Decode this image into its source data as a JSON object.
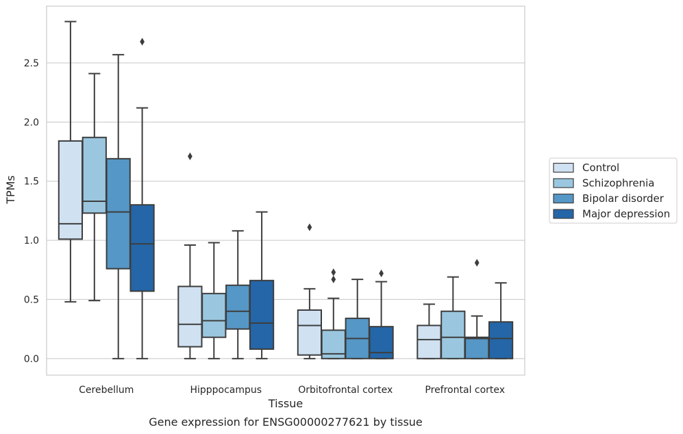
{
  "chart_data": {
    "type": "box",
    "xlabel": "Tissue",
    "ylabel": "TPMs",
    "caption": "Gene expression for ENSG00000277621 by tissue",
    "ylim": [
      -0.14,
      2.98
    ],
    "yticks": [
      "0.0",
      "0.5",
      "1.0",
      "1.5",
      "2.0",
      "2.5"
    ],
    "grid": "horizontal",
    "legend_position": "right",
    "categories": [
      "Cerebellum",
      "Hipppocampus",
      "Orbitofrontal cortex",
      "Prefrontal cortex"
    ],
    "series": [
      {
        "name": "Control",
        "color": "#d0e1f2",
        "boxes": [
          {
            "min": 0.48,
            "q1": 1.01,
            "median": 1.14,
            "q3": 1.84,
            "max": 2.85,
            "outliers": []
          },
          {
            "min": 0.0,
            "q1": 0.1,
            "median": 0.29,
            "q3": 0.61,
            "max": 0.96,
            "outliers": [
              1.71
            ]
          },
          {
            "min": 0.0,
            "q1": 0.03,
            "median": 0.28,
            "q3": 0.41,
            "max": 0.59,
            "outliers": [
              1.11
            ]
          },
          {
            "min": 0.0,
            "q1": 0.0,
            "median": 0.16,
            "q3": 0.28,
            "max": 0.46,
            "outliers": []
          }
        ]
      },
      {
        "name": "Schizophrenia",
        "color": "#9ac7df",
        "boxes": [
          {
            "min": 0.49,
            "q1": 1.23,
            "median": 1.33,
            "q3": 1.87,
            "max": 2.41,
            "outliers": []
          },
          {
            "min": 0.0,
            "q1": 0.18,
            "median": 0.32,
            "q3": 0.55,
            "max": 0.98,
            "outliers": []
          },
          {
            "min": 0.0,
            "q1": 0.0,
            "median": 0.04,
            "q3": 0.24,
            "max": 0.51,
            "outliers": [
              0.67,
              0.73
            ]
          },
          {
            "min": 0.0,
            "q1": 0.0,
            "median": 0.18,
            "q3": 0.4,
            "max": 0.69,
            "outliers": []
          }
        ]
      },
      {
        "name": "Bipolar disorder",
        "color": "#5597c6",
        "boxes": [
          {
            "min": 0.0,
            "q1": 0.76,
            "median": 1.24,
            "q3": 1.69,
            "max": 2.57,
            "outliers": []
          },
          {
            "min": 0.0,
            "q1": 0.25,
            "median": 0.4,
            "q3": 0.62,
            "max": 1.08,
            "outliers": []
          },
          {
            "min": 0.0,
            "q1": 0.0,
            "median": 0.17,
            "q3": 0.34,
            "max": 0.67,
            "outliers": []
          },
          {
            "min": 0.0,
            "q1": 0.0,
            "median": 0.17,
            "q3": 0.18,
            "max": 0.36,
            "outliers": [
              0.81
            ]
          }
        ]
      },
      {
        "name": "Major depression",
        "color": "#2466a8",
        "boxes": [
          {
            "min": 0.0,
            "q1": 0.57,
            "median": 0.97,
            "q3": 1.3,
            "max": 2.12,
            "outliers": [
              2.68
            ]
          },
          {
            "min": 0.0,
            "q1": 0.08,
            "median": 0.3,
            "q3": 0.66,
            "max": 1.24,
            "outliers": []
          },
          {
            "min": 0.0,
            "q1": 0.0,
            "median": 0.05,
            "q3": 0.27,
            "max": 0.65,
            "outliers": [
              0.72
            ]
          },
          {
            "min": 0.0,
            "q1": 0.0,
            "median": 0.17,
            "q3": 0.31,
            "max": 0.64,
            "outliers": []
          }
        ]
      }
    ]
  }
}
